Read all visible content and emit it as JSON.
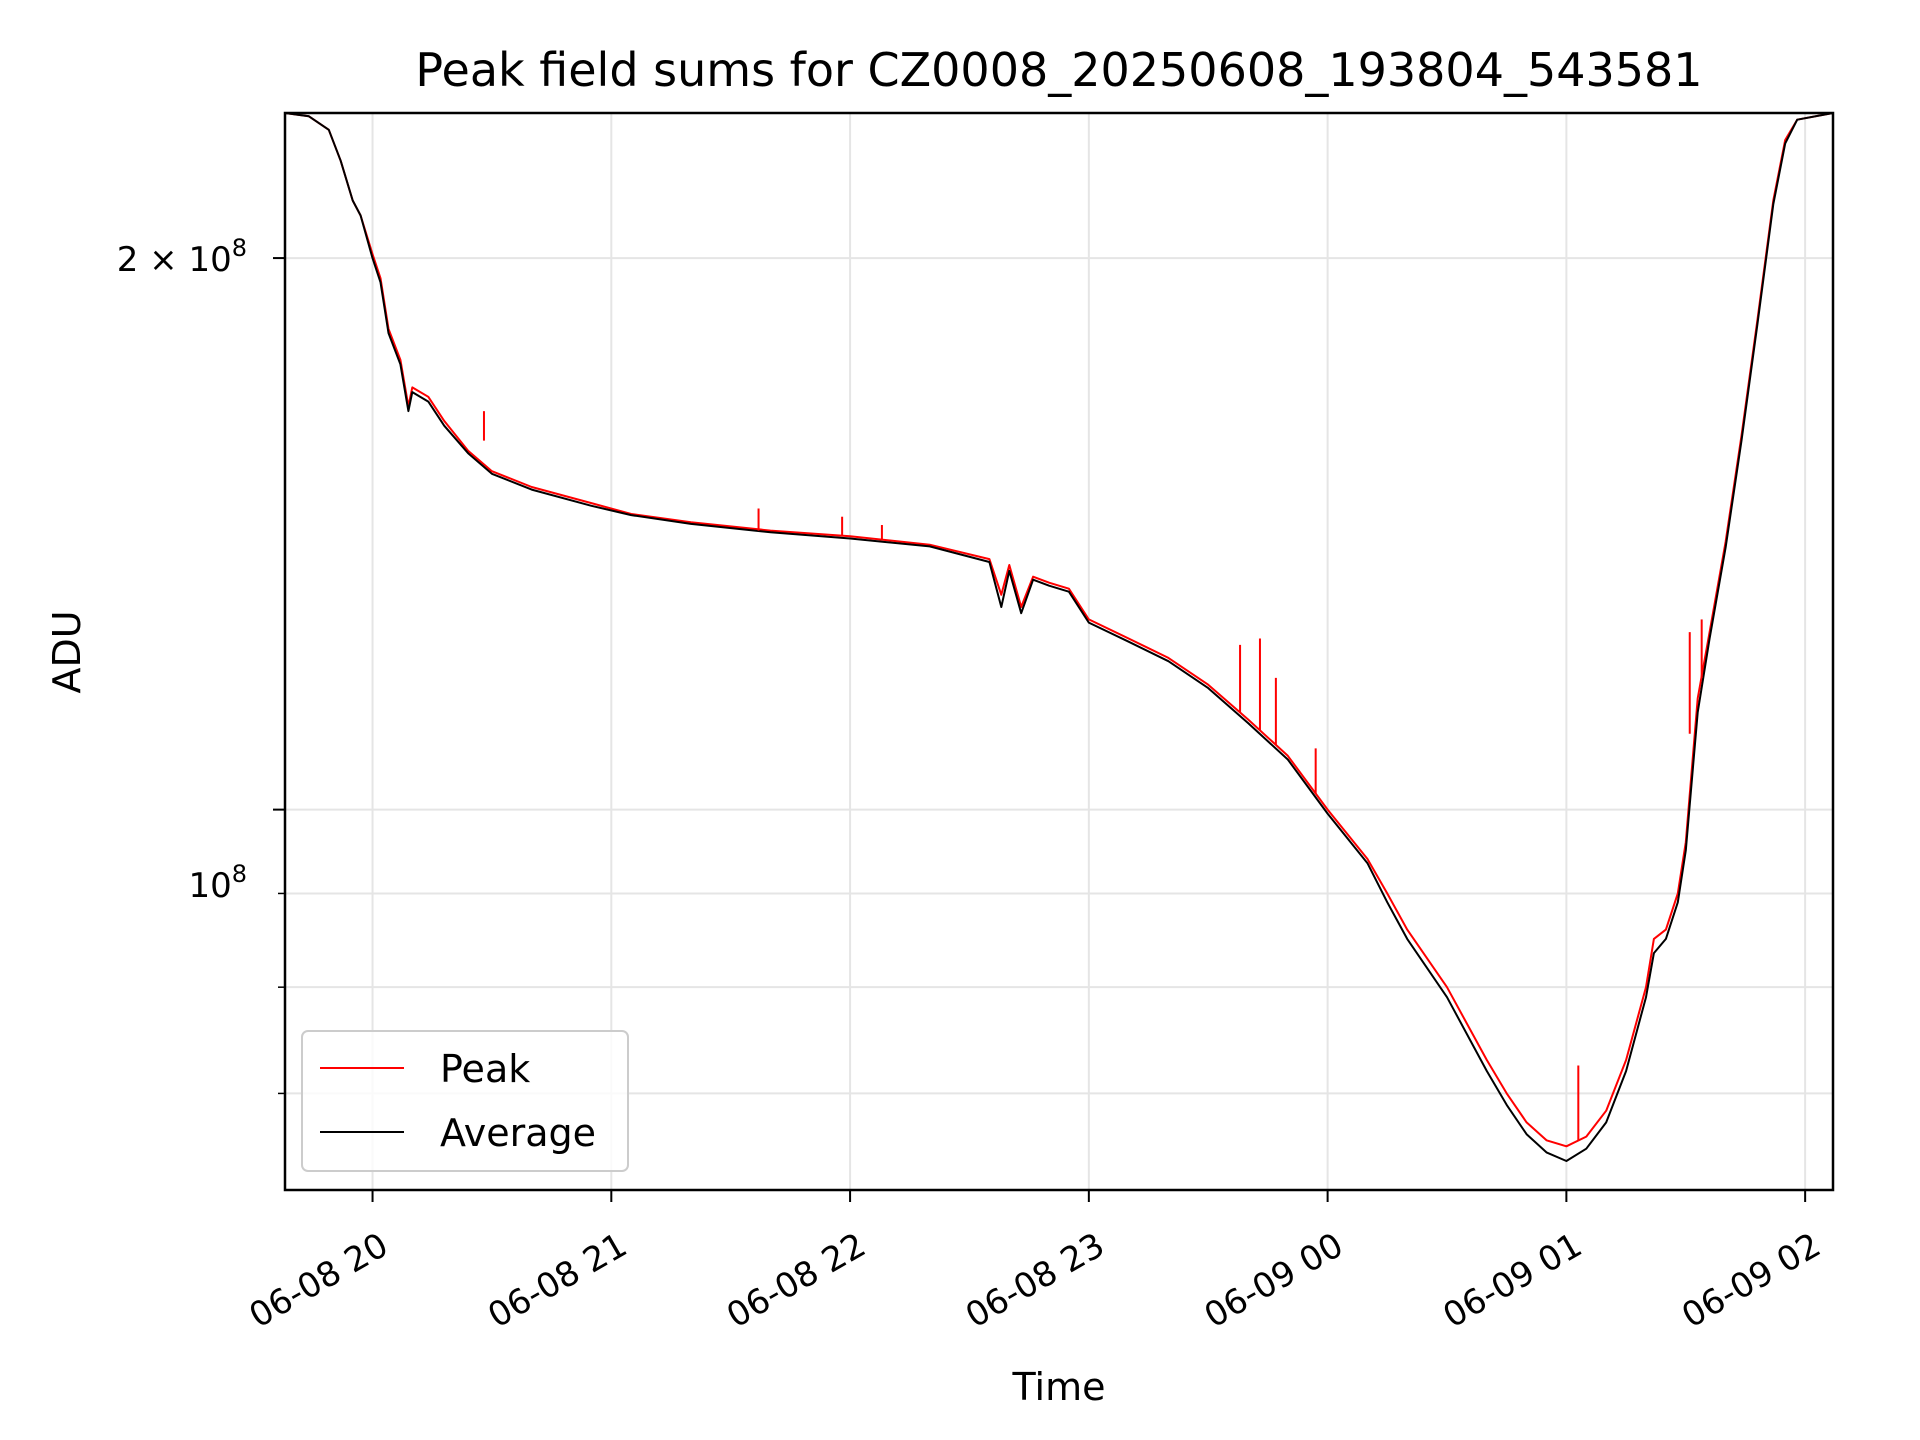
{
  "chart_data": {
    "type": "line",
    "title": "Peak field sums for CZ0008_20250608_193804_543581",
    "xlabel": "Time",
    "ylabel": "ADU",
    "y_scale": "log",
    "grid": true,
    "legend_position": "lower-left",
    "x_ticks": [
      "06-08 20",
      "06-08 21",
      "06-08 22",
      "06-08 23",
      "06-09 00",
      "06-09 01",
      "06-09 02"
    ],
    "y_tick_labels": {
      "major_2e8": [
        "2 × 10",
        "8"
      ],
      "major_1e8": [
        "10",
        "8"
      ]
    },
    "xlim": [
      "2025-06-08 19:38",
      "2025-06-09 02:07"
    ],
    "ylim": [
      62000000,
      240000000
    ],
    "series": [
      {
        "name": "Peak",
        "color": "#ff0000",
        "points": [
          [
            "2025-06-08 19:38",
            240000000
          ],
          [
            "2025-06-08 19:44",
            239000000
          ],
          [
            "2025-06-08 19:49",
            235000000
          ],
          [
            "2025-06-08 19:52",
            226000000
          ],
          [
            "2025-06-08 19:55",
            215000000
          ],
          [
            "2025-06-08 19:57",
            211000000
          ],
          [
            "2025-06-08 20:00",
            201000000
          ],
          [
            "2025-06-08 20:02",
            195000000
          ],
          [
            "2025-06-08 20:04",
            183000000
          ],
          [
            "2025-06-08 20:07",
            176000000
          ],
          [
            "2025-06-08 20:09",
            166000000
          ],
          [
            "2025-06-08 20:10",
            170000000
          ],
          [
            "2025-06-08 20:14",
            168000000
          ],
          [
            "2025-06-08 20:18",
            163000000
          ],
          [
            "2025-06-08 20:24",
            157000000
          ],
          [
            "2025-06-08 20:30",
            153000000
          ],
          [
            "2025-06-08 20:40",
            150000000
          ],
          [
            "2025-06-08 20:55",
            147000000
          ],
          [
            "2025-06-08 21:05",
            145000000
          ],
          [
            "2025-06-08 21:20",
            143500000
          ],
          [
            "2025-06-08 21:40",
            142000000
          ],
          [
            "2025-06-08 22:00",
            141000000
          ],
          [
            "2025-06-08 22:20",
            139500000
          ],
          [
            "2025-06-08 22:35",
            137000000
          ],
          [
            "2025-06-08 22:38",
            131000000
          ],
          [
            "2025-06-08 22:40",
            136000000
          ],
          [
            "2025-06-08 22:43",
            129000000
          ],
          [
            "2025-06-08 22:46",
            134000000
          ],
          [
            "2025-06-08 22:50",
            133000000
          ],
          [
            "2025-06-08 22:55",
            132000000
          ],
          [
            "2025-06-08 23:00",
            127000000
          ],
          [
            "2025-06-08 23:10",
            124000000
          ],
          [
            "2025-06-08 23:20",
            121000000
          ],
          [
            "2025-06-08 23:30",
            117000000
          ],
          [
            "2025-06-08 23:40",
            112000000
          ],
          [
            "2025-06-08 23:50",
            107000000
          ],
          [
            "2025-06-09 00:00",
            100000000
          ],
          [
            "2025-06-09 00:10",
            94000000
          ],
          [
            "2025-06-09 00:15",
            90000000
          ],
          [
            "2025-06-09 00:20",
            86000000
          ],
          [
            "2025-06-09 00:30",
            80000000
          ],
          [
            "2025-06-09 00:40",
            73000000
          ],
          [
            "2025-06-09 00:45",
            70000000
          ],
          [
            "2025-06-09 00:50",
            67500000
          ],
          [
            "2025-06-09 00:55",
            66000000
          ],
          [
            "2025-06-09 01:00",
            65500000
          ],
          [
            "2025-06-09 01:05",
            66300000
          ],
          [
            "2025-06-09 01:10",
            68500000
          ],
          [
            "2025-06-09 01:15",
            73000000
          ],
          [
            "2025-06-09 01:20",
            80000000
          ],
          [
            "2025-06-09 01:22",
            85000000
          ],
          [
            "2025-06-09 01:25",
            86000000
          ],
          [
            "2025-06-09 01:28",
            90000000
          ],
          [
            "2025-06-09 01:30",
            96000000
          ],
          [
            "2025-06-09 01:33",
            115000000
          ],
          [
            "2025-06-09 01:36",
            125000000
          ],
          [
            "2025-06-09 01:40",
            140000000
          ],
          [
            "2025-06-09 01:44",
            160000000
          ],
          [
            "2025-06-09 01:48",
            185000000
          ],
          [
            "2025-06-09 01:52",
            215000000
          ],
          [
            "2025-06-09 01:55",
            232000000
          ],
          [
            "2025-06-09 01:58",
            238000000
          ],
          [
            "2025-06-09 02:07",
            240000000
          ]
        ]
      },
      {
        "name": "Average",
        "color": "#000000",
        "points": [
          [
            "2025-06-08 19:38",
            240000000
          ],
          [
            "2025-06-08 19:44",
            239000000
          ],
          [
            "2025-06-08 19:49",
            235000000
          ],
          [
            "2025-06-08 19:52",
            226000000
          ],
          [
            "2025-06-08 19:55",
            215000000
          ],
          [
            "2025-06-08 19:57",
            211000000
          ],
          [
            "2025-06-08 20:00",
            200000000
          ],
          [
            "2025-06-08 20:02",
            194000000
          ],
          [
            "2025-06-08 20:04",
            182000000
          ],
          [
            "2025-06-08 20:07",
            175000000
          ],
          [
            "2025-06-08 20:09",
            165000000
          ],
          [
            "2025-06-08 20:10",
            169000000
          ],
          [
            "2025-06-08 20:14",
            167000000
          ],
          [
            "2025-06-08 20:18",
            162000000
          ],
          [
            "2025-06-08 20:24",
            156500000
          ],
          [
            "2025-06-08 20:30",
            152500000
          ],
          [
            "2025-06-08 20:40",
            149500000
          ],
          [
            "2025-06-08 20:55",
            146500000
          ],
          [
            "2025-06-08 21:05",
            144800000
          ],
          [
            "2025-06-08 21:20",
            143200000
          ],
          [
            "2025-06-08 21:40",
            141700000
          ],
          [
            "2025-06-08 22:00",
            140600000
          ],
          [
            "2025-06-08 22:20",
            139200000
          ],
          [
            "2025-06-08 22:35",
            136500000
          ],
          [
            "2025-06-08 22:38",
            129000000
          ],
          [
            "2025-06-08 22:40",
            135000000
          ],
          [
            "2025-06-08 22:43",
            128000000
          ],
          [
            "2025-06-08 22:46",
            133500000
          ],
          [
            "2025-06-08 22:50",
            132500000
          ],
          [
            "2025-06-08 22:55",
            131500000
          ],
          [
            "2025-06-08 23:00",
            126500000
          ],
          [
            "2025-06-08 23:10",
            123500000
          ],
          [
            "2025-06-08 23:20",
            120500000
          ],
          [
            "2025-06-08 23:30",
            116500000
          ],
          [
            "2025-06-08 23:40",
            111500000
          ],
          [
            "2025-06-08 23:50",
            106500000
          ],
          [
            "2025-06-09 00:00",
            99500000
          ],
          [
            "2025-06-09 00:10",
            93500000
          ],
          [
            "2025-06-09 00:15",
            89000000
          ],
          [
            "2025-06-09 00:20",
            85000000
          ],
          [
            "2025-06-09 00:30",
            79000000
          ],
          [
            "2025-06-09 00:40",
            72000000
          ],
          [
            "2025-06-09 00:45",
            69000000
          ],
          [
            "2025-06-09 00:50",
            66500000
          ],
          [
            "2025-06-09 00:55",
            65000000
          ],
          [
            "2025-06-09 01:00",
            64300000
          ],
          [
            "2025-06-09 01:05",
            65300000
          ],
          [
            "2025-06-09 01:10",
            67500000
          ],
          [
            "2025-06-09 01:15",
            72000000
          ],
          [
            "2025-06-09 01:20",
            79000000
          ],
          [
            "2025-06-09 01:22",
            83500000
          ],
          [
            "2025-06-09 01:25",
            85000000
          ],
          [
            "2025-06-09 01:28",
            89000000
          ],
          [
            "2025-06-09 01:30",
            95000000
          ],
          [
            "2025-06-09 01:33",
            113000000
          ],
          [
            "2025-06-09 01:36",
            124000000
          ],
          [
            "2025-06-09 01:40",
            139000000
          ],
          [
            "2025-06-09 01:44",
            159000000
          ],
          [
            "2025-06-09 01:48",
            184000000
          ],
          [
            "2025-06-09 01:52",
            214000000
          ],
          [
            "2025-06-09 01:55",
            231000000
          ],
          [
            "2025-06-09 01:58",
            238000000
          ],
          [
            "2025-06-09 02:07",
            240000000
          ]
        ]
      }
    ],
    "spikes": [
      [
        "2025-06-08 20:28",
        159000000,
        165000000
      ],
      [
        "2025-06-08 21:37",
        142000000,
        146000000
      ],
      [
        "2025-06-08 21:58",
        141000000,
        144500000
      ],
      [
        "2025-06-08 22:08",
        140300000,
        143000000
      ],
      [
        "2025-06-08 23:38",
        113000000,
        123000000
      ],
      [
        "2025-06-08 23:43",
        110500000,
        124000000
      ],
      [
        "2025-06-08 23:47",
        108500000,
        118000000
      ],
      [
        "2025-06-08 23:57",
        102000000,
        108000000
      ],
      [
        "2025-06-09 01:03",
        66000000,
        72500000
      ],
      [
        "2025-06-09 01:31",
        110000000,
        125000000
      ],
      [
        "2025-06-09 01:34",
        118000000,
        127000000
      ]
    ]
  }
}
